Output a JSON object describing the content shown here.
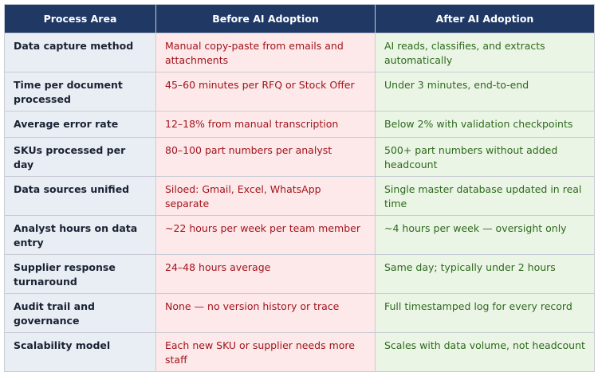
{
  "header": {
    "columns": [
      "Process Area",
      "Before AI Adoption",
      "After AI Adoption"
    ]
  },
  "table": {
    "rows": [
      [
        "Data capture method",
        "Manual copy-paste from emails and attachments",
        "AI reads, classifies, and extracts automatically"
      ],
      [
        "Time per document processed",
        "45–60 minutes per RFQ or Stock Offer",
        "Under 3 minutes, end-to-end"
      ],
      [
        "Average error rate",
        "12–18% from manual transcription",
        "Below 2% with validation checkpoints"
      ],
      [
        "SKUs processed per day",
        "80–100 part numbers per analyst",
        "500+ part numbers without added headcount"
      ],
      [
        "Data sources unified",
        "Siloed: Gmail, Excel, WhatsApp separate",
        "Single master database updated in real time"
      ],
      [
        "Analyst hours on data entry",
        "~22 hours per week per team member",
        "~4 hours per week — oversight only"
      ],
      [
        "Supplier response turnaround",
        "24–48 hours average",
        "Same day; typically under 2 hours"
      ],
      [
        "Audit trail and governance",
        "None — no version history or trace",
        "Full timestamped log for every record"
      ],
      [
        "Scalability model",
        "Each new SKU or supplier needs more staff",
        "Scales with data volume, not headcount"
      ]
    ]
  }
}
